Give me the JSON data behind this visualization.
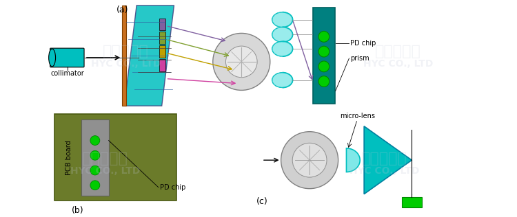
{
  "bg_color": "#f0f0f0",
  "watermark_text": "亿源通科技\nHYC CO., LTD",
  "watermark_color": "#c0c8d8",
  "label_a": "(a)",
  "label_b": "(b)",
  "label_c": "(c)",
  "collimator_label": "collimator",
  "pd_chip_label": "PD chip",
  "prism_label": "prism",
  "micro_lens_label": "micro-lens",
  "pcb_board_label": "PCB board",
  "pd_chip_label2": "PD chip",
  "cyan_color": "#00BFBF",
  "teal_color": "#20A0A0",
  "orange_brown": "#C87020",
  "purple_color": "#8060A0",
  "green_color": "#80A030",
  "gold_color": "#C0A000",
  "magenta_color": "#D040A0",
  "dark_cyan": "#008080",
  "olive_green": "#6B7B2A",
  "gray_color": "#A0A0A0",
  "green_dot": "#00CC00",
  "line_color": "#404040"
}
